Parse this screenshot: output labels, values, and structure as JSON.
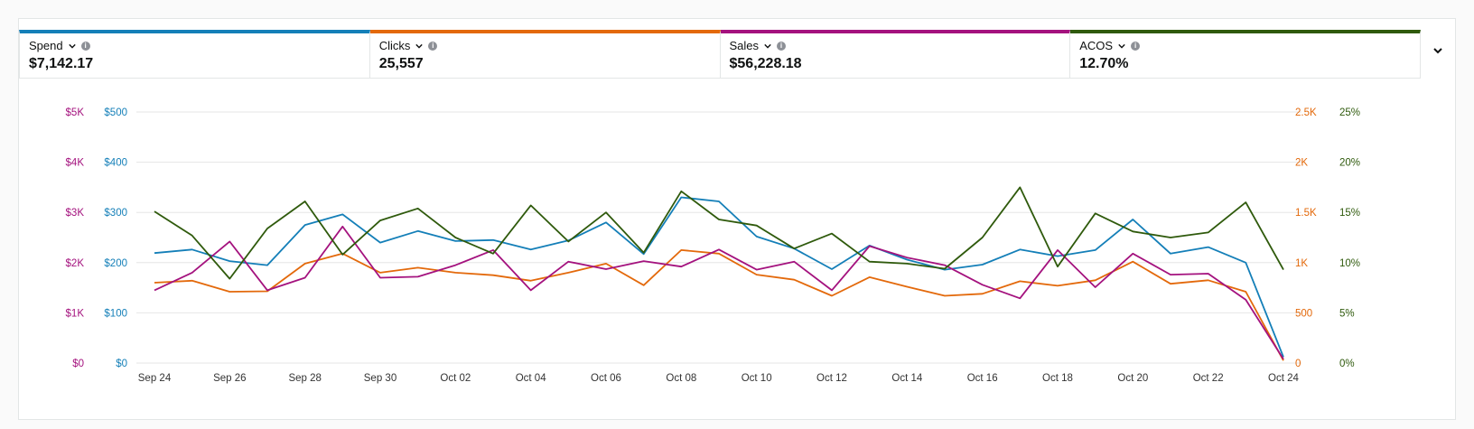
{
  "metrics": [
    {
      "label": "Spend",
      "value": "$7,142.17",
      "color": "#147fb8",
      "icon": "info-icon"
    },
    {
      "label": "Clicks",
      "value": "25,557",
      "color": "#e3690b",
      "icon": "info-icon"
    },
    {
      "label": "Sales",
      "value": "$56,228.18",
      "color": "#a4127e",
      "icon": "info-icon"
    },
    {
      "label": "ACOS",
      "value": "12.70%",
      "color": "#2f5a0c",
      "icon": "info-icon"
    }
  ],
  "expand_icon": "chevron-down-icon",
  "chart_data": {
    "type": "line",
    "x": [
      "Sep 24",
      "Sep 25",
      "Sep 26",
      "Sep 27",
      "Sep 28",
      "Sep 29",
      "Sep 30",
      "Oct 01",
      "Oct 02",
      "Oct 03",
      "Oct 04",
      "Oct 05",
      "Oct 06",
      "Oct 07",
      "Oct 08",
      "Oct 09",
      "Oct 10",
      "Oct 11",
      "Oct 12",
      "Oct 13",
      "Oct 14",
      "Oct 15",
      "Oct 16",
      "Oct 17",
      "Oct 18",
      "Oct 19",
      "Oct 20",
      "Oct 21",
      "Oct 22",
      "Oct 23",
      "Oct 24"
    ],
    "xticks": [
      "Sep 24",
      "Sep 26",
      "Sep 28",
      "Sep 30",
      "Oct 02",
      "Oct 04",
      "Oct 06",
      "Oct 08",
      "Oct 10",
      "Oct 12",
      "Oct 14",
      "Oct 16",
      "Oct 18",
      "Oct 20",
      "Oct 22",
      "Oct 24"
    ],
    "grid": true,
    "axes": {
      "sales": {
        "ticks": [
          "$0",
          "$1K",
          "$2K",
          "$3K",
          "$4K",
          "$5K"
        ],
        "range": [
          0,
          5000
        ],
        "color": "#a4127e"
      },
      "spend": {
        "ticks": [
          "$0",
          "$100",
          "$200",
          "$300",
          "$400",
          "$500"
        ],
        "range": [
          0,
          500
        ],
        "color": "#147fb8"
      },
      "clicks": {
        "ticks": [
          "0",
          "500",
          "1K",
          "1.5K",
          "2K",
          "2.5K"
        ],
        "range": [
          0,
          2500
        ],
        "color": "#e3690b"
      },
      "acos": {
        "ticks": [
          "0%",
          "5%",
          "10%",
          "15%",
          "20%",
          "25%"
        ],
        "range": [
          0,
          25
        ],
        "color": "#2f5a0c"
      }
    },
    "series": [
      {
        "name": "Spend",
        "axis": "spend",
        "color": "#147fb8",
        "values": [
          219,
          226,
          203,
          195,
          275,
          296,
          240,
          263,
          243,
          245,
          226,
          244,
          280,
          217,
          330,
          322,
          252,
          228,
          187,
          234,
          206,
          186,
          196,
          226,
          213,
          225,
          286,
          218,
          231,
          200,
          12
        ]
      },
      {
        "name": "Clicks",
        "axis": "clicks",
        "color": "#e3690b",
        "values": [
          800,
          820,
          710,
          715,
          990,
          1090,
          900,
          950,
          900,
          875,
          820,
          900,
          990,
          775,
          1125,
          1090,
          880,
          830,
          670,
          855,
          760,
          670,
          690,
          815,
          770,
          825,
          1010,
          790,
          825,
          710,
          25
        ]
      },
      {
        "name": "Sales",
        "axis": "sales",
        "color": "#a4127e",
        "values": [
          1450,
          1800,
          2420,
          1450,
          1700,
          2720,
          1700,
          1720,
          1950,
          2250,
          1450,
          2020,
          1870,
          2030,
          1920,
          2260,
          1860,
          2020,
          1450,
          2330,
          2100,
          1950,
          1560,
          1290,
          2250,
          1510,
          2180,
          1760,
          1780,
          1260,
          80
        ]
      },
      {
        "name": "ACOS",
        "axis": "acos",
        "color": "#2f5a0c",
        "values": [
          15.1,
          12.7,
          8.4,
          13.4,
          16.1,
          10.8,
          14.2,
          15.4,
          12.5,
          10.9,
          15.7,
          12.1,
          15.0,
          11.0,
          17.1,
          14.3,
          13.7,
          11.4,
          12.9,
          10.1,
          9.9,
          9.4,
          12.5,
          17.5,
          9.6,
          14.9,
          13.1,
          12.5,
          13.0,
          16.0,
          9.3
        ]
      }
    ]
  }
}
